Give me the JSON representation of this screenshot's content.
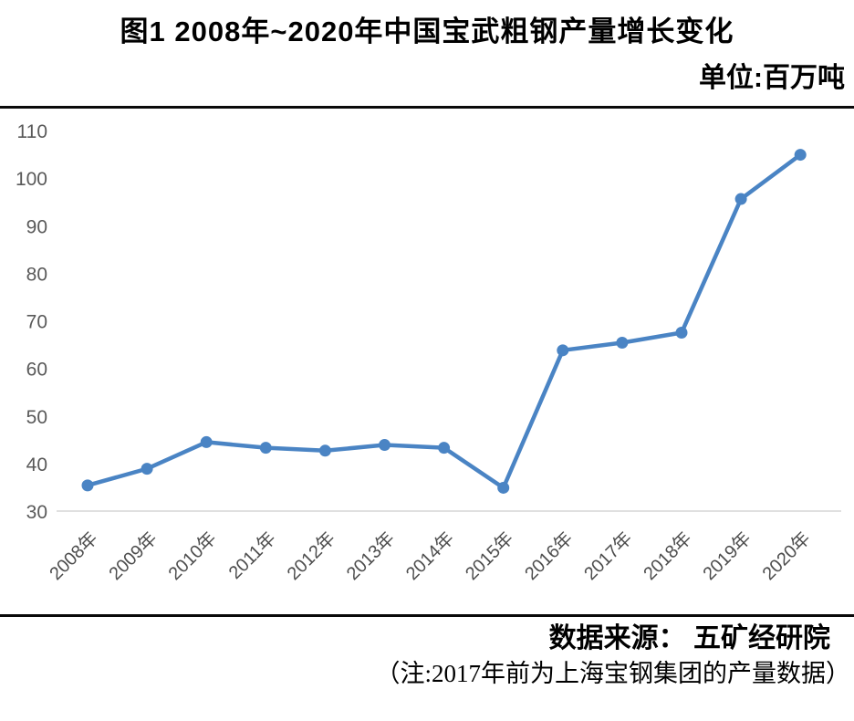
{
  "header": {
    "title": "图1 2008年~2020年中国宝武粗钢产量增长变化",
    "unit_label": "单位:百万吨"
  },
  "footer": {
    "source": "数据来源： 五矿经研院",
    "note": "（注:2017年前为上海宝钢集团的产量数据）"
  },
  "colors": {
    "line": "#4a84c4",
    "marker": "#4a84c4",
    "axis_text": "#595959",
    "x_axis_text": "#4d4d4d",
    "axis_line": "#d6d6d6",
    "rule": "#0a0a0a"
  },
  "chart_data": {
    "type": "line",
    "title": "图1 2008年~2020年中国宝武粗钢产量增长变化",
    "unit": "百万吨",
    "categories": [
      "2008年",
      "2009年",
      "2010年",
      "2011年",
      "2012年",
      "2013年",
      "2014年",
      "2015年",
      "2016年",
      "2017年",
      "2018年",
      "2019年",
      "2020年"
    ],
    "values": [
      35.4,
      38.9,
      44.5,
      43.3,
      42.7,
      43.9,
      43.3,
      34.9,
      63.8,
      65.4,
      67.5,
      95.6,
      104.9
    ],
    "ylim": [
      30,
      110
    ],
    "yticks": [
      30,
      40,
      50,
      60,
      70,
      80,
      90,
      100,
      110
    ],
    "grid": false,
    "legend": "none",
    "marker": "circle",
    "xlabel": "",
    "ylabel": ""
  }
}
